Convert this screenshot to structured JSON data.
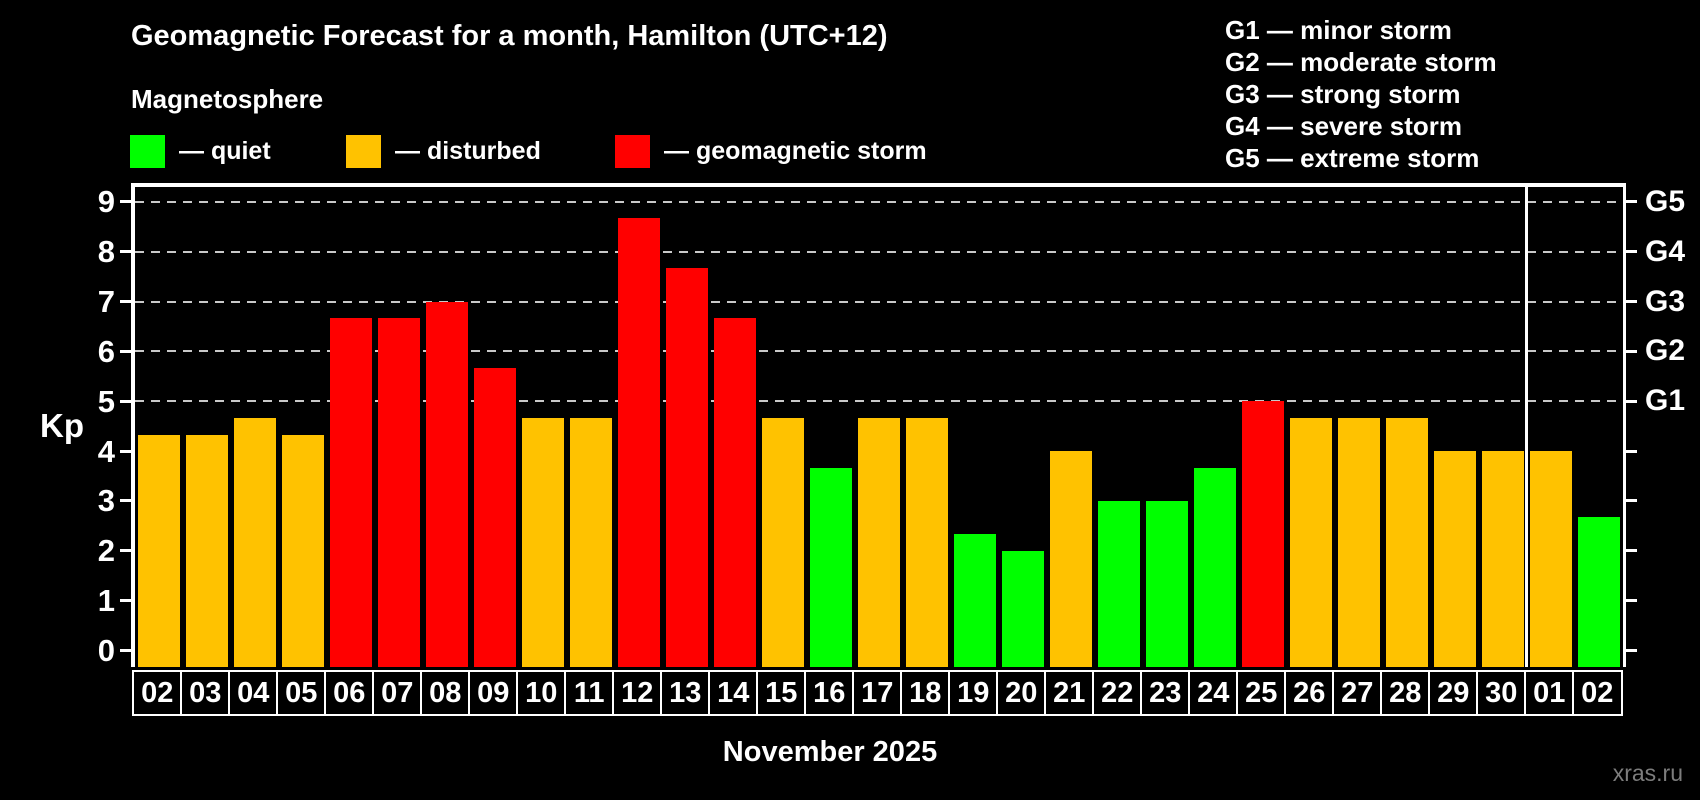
{
  "header": {
    "title": "Geomagnetic Forecast for a month, Hamilton (UTC+12)",
    "subtitle": "Magnetosphere"
  },
  "legend": {
    "items": [
      {
        "key": "quiet",
        "label": "— quiet",
        "color": "#00ff00"
      },
      {
        "key": "disturbed",
        "label": "— disturbed",
        "color": "#ffc200"
      },
      {
        "key": "storm",
        "label": "— geomagnetic storm",
        "color": "#ff0000"
      }
    ]
  },
  "g_legend": {
    "lines": [
      "G1 — minor storm",
      "G2 — moderate storm",
      "G3 — strong storm",
      "G4 — severe storm",
      "G5 — extreme storm"
    ]
  },
  "y_axis": {
    "label": "Kp",
    "ticks": [
      0,
      1,
      2,
      3,
      4,
      5,
      6,
      7,
      8,
      9
    ],
    "g_labels": {
      "5": "G1",
      "6": "G2",
      "7": "G3",
      "8": "G4",
      "9": "G5"
    }
  },
  "footer": {
    "month_label": "November 2025",
    "watermark": "xras.ru"
  },
  "chart_data": {
    "type": "bar",
    "title": "Geomagnetic Forecast for a month, Hamilton (UTC+12)",
    "subtitle": "Magnetosphere",
    "ylabel": "Kp",
    "ylim": [
      -0.33,
      9.35
    ],
    "grid_kp": [
      5,
      6,
      7,
      8,
      9
    ],
    "legend_position": "top",
    "month_separator_before_index": 29,
    "categories": [
      "02",
      "03",
      "04",
      "05",
      "06",
      "07",
      "08",
      "09",
      "10",
      "11",
      "12",
      "13",
      "14",
      "15",
      "16",
      "17",
      "18",
      "19",
      "20",
      "21",
      "22",
      "23",
      "24",
      "25",
      "26",
      "27",
      "28",
      "29",
      "30",
      "01",
      "02"
    ],
    "values": [
      4.33,
      4.33,
      4.67,
      4.33,
      6.67,
      6.67,
      7.0,
      5.67,
      4.67,
      4.67,
      8.67,
      7.67,
      6.67,
      4.67,
      3.67,
      4.67,
      4.67,
      2.33,
      2.0,
      4.0,
      3.0,
      3.0,
      3.67,
      5.0,
      4.67,
      4.67,
      4.67,
      4.0,
      4.0,
      4.0,
      2.67
    ],
    "statuses": [
      "disturbed",
      "disturbed",
      "disturbed",
      "disturbed",
      "storm",
      "storm",
      "storm",
      "storm",
      "disturbed",
      "disturbed",
      "storm",
      "storm",
      "storm",
      "disturbed",
      "quiet",
      "disturbed",
      "disturbed",
      "quiet",
      "quiet",
      "disturbed",
      "quiet",
      "quiet",
      "quiet",
      "storm",
      "disturbed",
      "disturbed",
      "disturbed",
      "disturbed",
      "disturbed",
      "disturbed",
      "quiet"
    ],
    "status_colors": {
      "quiet": "#00ff00",
      "disturbed": "#ffc200",
      "storm": "#ff0000"
    }
  }
}
